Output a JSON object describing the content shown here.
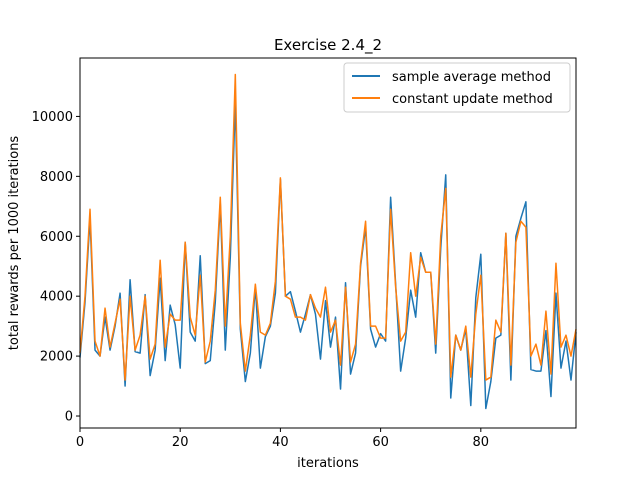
{
  "chart_data": {
    "type": "line",
    "title": "Exercise 2.4_2",
    "xlabel": "iterations",
    "ylabel": "total rewards per 1000 iterations",
    "xlim": [
      0,
      99
    ],
    "ylim": [
      -400,
      11950
    ],
    "xticks": [
      0,
      20,
      40,
      60,
      80
    ],
    "yticks": [
      0,
      2000,
      4000,
      6000,
      8000,
      10000
    ],
    "grid": false,
    "legend": "top-right",
    "x": [
      0,
      1,
      2,
      3,
      4,
      5,
      6,
      7,
      8,
      9,
      10,
      11,
      12,
      13,
      14,
      15,
      16,
      17,
      18,
      19,
      20,
      21,
      22,
      23,
      24,
      25,
      26,
      27,
      28,
      29,
      30,
      31,
      32,
      33,
      34,
      35,
      36,
      37,
      38,
      39,
      40,
      41,
      42,
      43,
      44,
      45,
      46,
      47,
      48,
      49,
      50,
      51,
      52,
      53,
      54,
      55,
      56,
      57,
      58,
      59,
      60,
      61,
      62,
      63,
      64,
      65,
      66,
      67,
      68,
      69,
      70,
      71,
      72,
      73,
      74,
      75,
      76,
      77,
      78,
      79,
      80,
      81,
      82,
      83,
      84,
      85,
      86,
      87,
      88,
      89,
      90,
      91,
      92,
      93,
      94,
      95,
      96,
      97,
      98,
      99
    ],
    "series": [
      {
        "name": "sample average method",
        "color": "#1f77b4",
        "values": [
          1950,
          3800,
          6600,
          2200,
          2000,
          3300,
          2200,
          3000,
          4100,
          1000,
          4550,
          2150,
          2100,
          4050,
          1350,
          2200,
          4600,
          1850,
          3700,
          3050,
          1600,
          5800,
          2800,
          2500,
          5350,
          1750,
          1850,
          3800,
          7100,
          2200,
          5300,
          10500,
          2900,
          1150,
          2100,
          4300,
          1600,
          2650,
          3000,
          4100,
          7900,
          4000,
          4150,
          3500,
          2800,
          3400,
          4050,
          3400,
          1900,
          3850,
          2300,
          3300,
          900,
          4450,
          1400,
          2100,
          5000,
          6300,
          2900,
          2300,
          2750,
          2500,
          7300,
          4400,
          1500,
          2600,
          4200,
          3300,
          5450,
          4800,
          4800,
          2100,
          5600,
          8050,
          600,
          2700,
          2200,
          2900,
          350,
          3950,
          5400,
          250,
          1150,
          2600,
          2700,
          6100,
          1200,
          6000,
          6600,
          7150,
          1550,
          1500,
          1500,
          2850,
          650,
          4100,
          1600,
          2500,
          1200,
          2800
        ]
      },
      {
        "name": "constant update method",
        "color": "#ff7f0e",
        "values": [
          2100,
          4000,
          6900,
          2500,
          2000,
          3600,
          2300,
          3100,
          3900,
          1200,
          4000,
          2200,
          2700,
          4000,
          1900,
          2400,
          5200,
          2300,
          3400,
          3200,
          3200,
          5800,
          3300,
          2700,
          4700,
          1800,
          2500,
          4200,
          7300,
          3000,
          6000,
          11400,
          3100,
          1500,
          2700,
          4400,
          2800,
          2700,
          3100,
          4500,
          7950,
          4000,
          3900,
          3300,
          3300,
          3200,
          4050,
          3600,
          3300,
          4300,
          2800,
          3200,
          1700,
          4300,
          1800,
          2400,
          5100,
          6500,
          3000,
          3000,
          2600,
          2600,
          6900,
          4300,
          2500,
          2800,
          5450,
          4000,
          5300,
          4800,
          4800,
          2400,
          6000,
          7600,
          1300,
          2700,
          2200,
          3000,
          1300,
          3400,
          4700,
          1200,
          1300,
          3200,
          2800,
          6100,
          1700,
          5800,
          6500,
          6300,
          2000,
          2400,
          1700,
          3500,
          1400,
          5100,
          2300,
          2700,
          2000,
          2900
        ]
      }
    ]
  }
}
